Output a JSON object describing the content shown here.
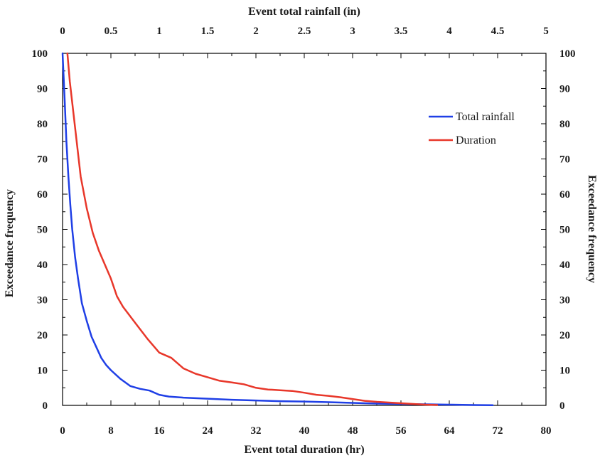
{
  "chart_data": {
    "type": "line",
    "xlabel_bottom": "Event total duration (hr)",
    "xlabel_top": "Event total rainfall (in)",
    "ylabel_left": "Exceedance frequency",
    "ylabel_right": "Exceedance frequency",
    "xlim_bottom": [
      0,
      80
    ],
    "xlim_top": [
      0,
      5
    ],
    "ylim": [
      0,
      100
    ],
    "x_ticks_bottom": [
      "0",
      "8",
      "16",
      "24",
      "32",
      "40",
      "48",
      "56",
      "64",
      "72",
      "80"
    ],
    "x_ticks_top": [
      "0",
      "0.5",
      "1",
      "1.5",
      "2",
      "2.5",
      "3",
      "3.5",
      "4",
      "4.5",
      "5"
    ],
    "y_ticks": [
      "0",
      "10",
      "20",
      "30",
      "40",
      "50",
      "60",
      "70",
      "80",
      "90",
      "100"
    ],
    "grid": false,
    "legend_position": "top-right",
    "series": [
      {
        "name": "Total rainfall",
        "color": "#1f3fe6",
        "axis": "top",
        "x": [
          0.0,
          0.02,
          0.04,
          0.06,
          0.08,
          0.1,
          0.13,
          0.16,
          0.2,
          0.25,
          0.3,
          0.35,
          0.4,
          0.45,
          0.5,
          0.6,
          0.7,
          0.8,
          0.9,
          1.0,
          1.1,
          1.25,
          1.5,
          1.75,
          2.0,
          2.25,
          2.5,
          2.75,
          3.0,
          3.25,
          3.5,
          3.75,
          4.0,
          4.25,
          4.45
        ],
        "y": [
          100,
          88,
          75,
          65,
          57,
          50,
          42,
          36,
          29,
          24,
          19.5,
          16.5,
          13.5,
          11.5,
          10,
          7.5,
          5.5,
          4.7,
          4.2,
          3.0,
          2.5,
          2.2,
          1.9,
          1.6,
          1.4,
          1.2,
          1.1,
          0.9,
          0.7,
          0.5,
          0.4,
          0.3,
          0.2,
          0.1,
          0.05
        ]
      },
      {
        "name": "Duration",
        "color": "#e8372a",
        "axis": "bottom",
        "x": [
          0.8,
          1.2,
          1.6,
          2,
          3,
          4,
          5,
          6,
          7,
          8,
          9,
          10,
          12,
          14,
          16,
          18,
          20,
          22,
          24,
          26,
          28,
          30,
          32,
          34,
          36,
          38,
          40,
          42,
          44,
          46,
          48,
          50,
          52,
          54,
          56,
          58,
          60,
          62
        ],
        "y": [
          100,
          92,
          86,
          80,
          65,
          56,
          49,
          44,
          40,
          36,
          31,
          28,
          23.5,
          19,
          15,
          13.5,
          10.5,
          9,
          8,
          7,
          6.5,
          6,
          5,
          4.5,
          4.3,
          4.1,
          3.6,
          3,
          2.7,
          2.3,
          1.8,
          1.3,
          1.0,
          0.8,
          0.6,
          0.4,
          0.2,
          0.1
        ]
      }
    ]
  }
}
